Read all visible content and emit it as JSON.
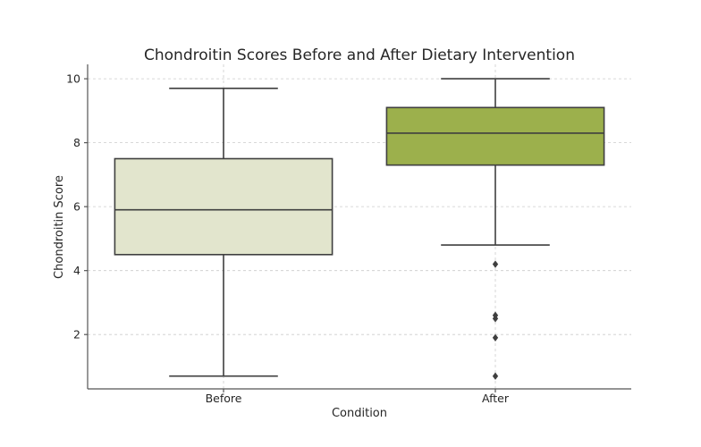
{
  "chart_data": {
    "type": "box",
    "title": "Chondroitin Scores Before and After Dietary Intervention",
    "xlabel": "Condition",
    "ylabel": "Chondroitin Score",
    "ylim": [
      0.3,
      10.45
    ],
    "yticks": [
      2,
      4,
      6,
      8,
      10
    ],
    "grid": true,
    "categories": [
      "Before",
      "After"
    ],
    "boxes": [
      {
        "name": "Before",
        "color": "#e2e5cd",
        "whisker_low": 0.7,
        "q1": 4.5,
        "median": 5.9,
        "q3": 7.5,
        "whisker_high": 9.7,
        "outliers": []
      },
      {
        "name": "After",
        "color": "#9cb04c",
        "whisker_low": 4.8,
        "q1": 7.3,
        "median": 8.3,
        "q3": 9.1,
        "whisker_high": 10.0,
        "outliers": [
          4.2,
          2.6,
          2.5,
          1.9,
          0.7
        ]
      }
    ]
  }
}
